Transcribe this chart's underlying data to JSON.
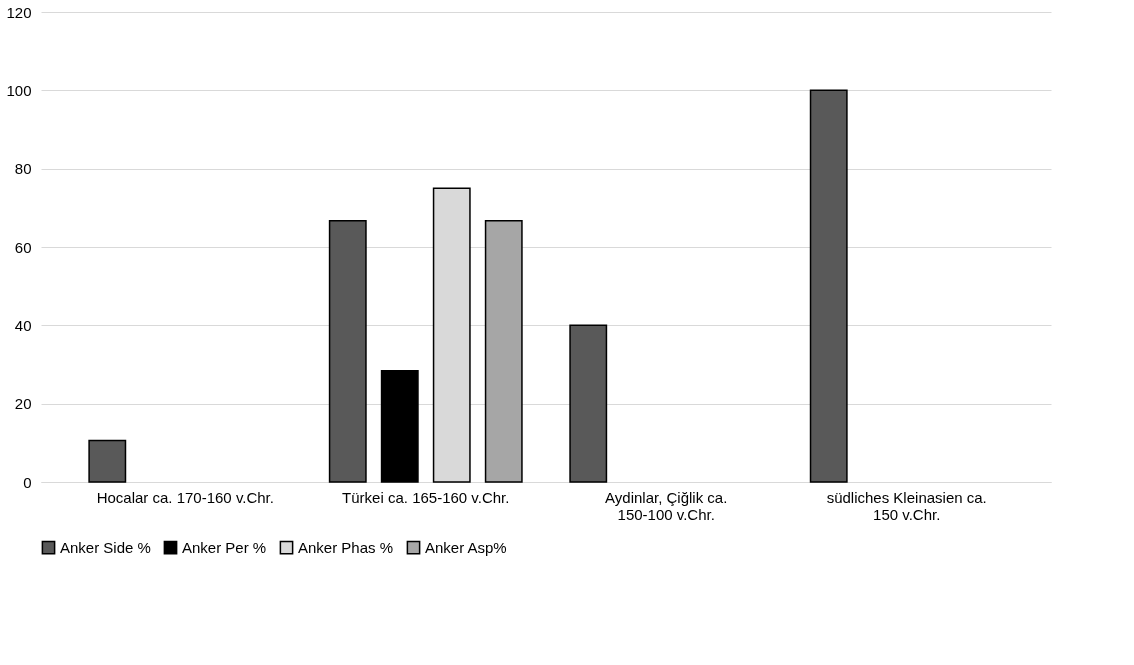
{
  "chart_data": {
    "type": "bar",
    "categories": [
      "Hocalar ca. 170-160 v.Chr.",
      "Türkei ca. 165-160 v.Chr.",
      "Aydinlar, Çiğlik ca. 150-100 v.Chr.",
      "südliches Kleinasien ca. 150 v.Chr."
    ],
    "series": [
      {
        "name": "Anker Side %",
        "color": "#595959",
        "values": [
          10.6,
          66.7,
          40,
          100
        ]
      },
      {
        "name": "Anker Per %",
        "color": "#000000",
        "values": [
          null,
          28.4,
          null,
          null
        ]
      },
      {
        "name": "Anker Phas %",
        "color": "#d9d9d9",
        "values": [
          null,
          75,
          null,
          null
        ]
      },
      {
        "name": "Anker Asp%",
        "color": "#a6a6a6",
        "values": [
          null,
          66.7,
          null,
          null
        ]
      }
    ],
    "ylim": [
      0,
      120
    ],
    "yticks": [
      0,
      20,
      40,
      60,
      80,
      100,
      120
    ],
    "grid": "y",
    "legend": "bottom"
  }
}
